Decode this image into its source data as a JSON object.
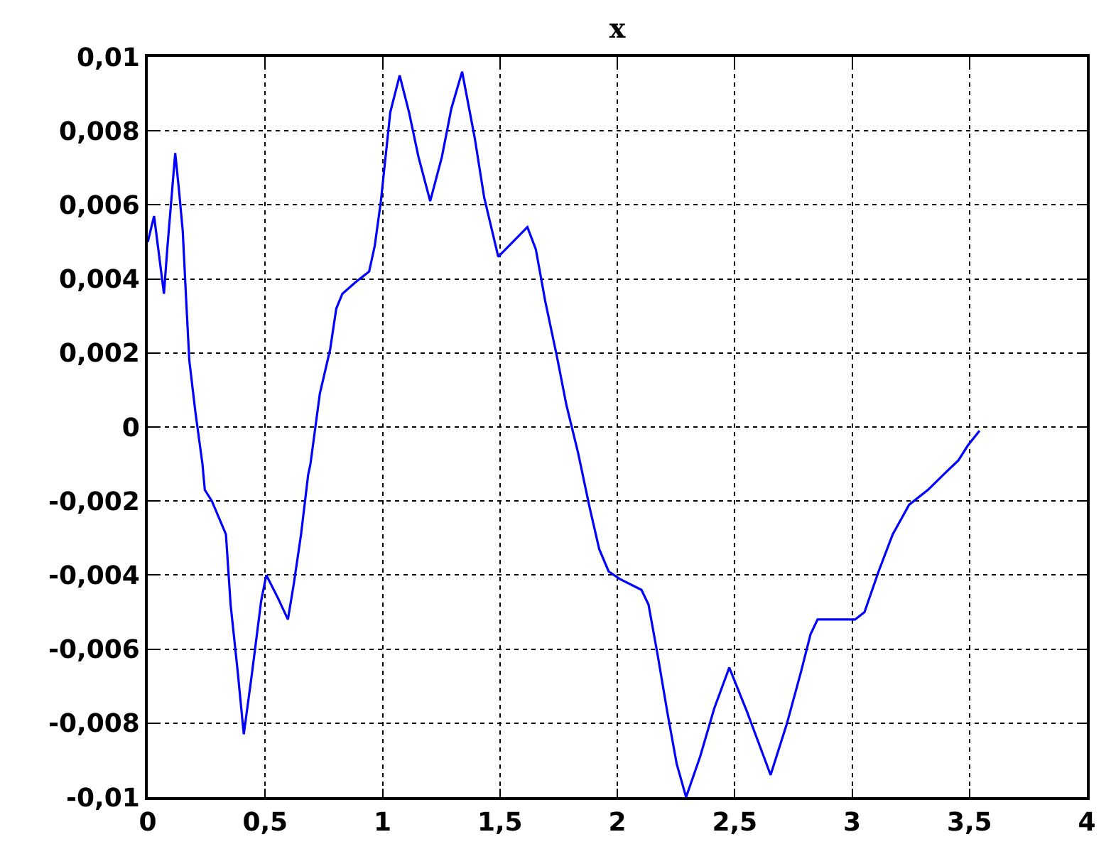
{
  "chart_data": {
    "type": "line",
    "title": "x",
    "x": [
      0,
      0.027,
      0.069,
      0.083,
      0.117,
      0.133,
      0.149,
      0.163,
      0.177,
      0.203,
      0.233,
      0.243,
      0.273,
      0.313,
      0.333,
      0.353,
      0.383,
      0.409,
      0.443,
      0.483,
      0.505,
      0.553,
      0.597,
      0.623,
      0.653,
      0.683,
      0.693,
      0.733,
      0.777,
      0.803,
      0.829,
      0.883,
      0.943,
      0.967,
      0.993,
      1.013,
      1.033,
      1.073,
      1.113,
      1.153,
      1.203,
      1.253,
      1.293,
      1.339,
      1.393,
      1.433,
      1.493,
      1.617,
      1.653,
      1.693,
      1.743,
      1.783,
      1.833,
      1.883,
      1.923,
      1.963,
      2.009,
      2.103,
      2.133,
      2.173,
      2.213,
      2.253,
      2.293,
      2.353,
      2.413,
      2.477,
      2.553,
      2.653,
      2.723,
      2.783,
      2.823,
      2.853,
      2.923,
      2.983,
      3.013,
      3.053,
      3.113,
      3.173,
      3.243,
      3.323,
      3.403,
      3.453,
      3.493,
      3.543
    ],
    "values": [
      0.005,
      0.0057,
      0.0036,
      0.0048,
      0.0074,
      0.0064,
      0.0053,
      0.0035,
      0.0018,
      0.0004,
      -0.001,
      -0.0017,
      -0.002,
      -0.0026,
      -0.0029,
      -0.0048,
      -0.0066,
      -0.0083,
      -0.0067,
      -0.0047,
      -0.004,
      -0.0046,
      -0.0052,
      -0.0042,
      -0.0029,
      -0.0013,
      -0.001,
      0.0009,
      0.0021,
      0.0032,
      0.0036,
      0.0039,
      0.0042,
      0.0049,
      0.0061,
      0.0073,
      0.0085,
      0.0095,
      0.0085,
      0.0073,
      0.0061,
      0.0073,
      0.0086,
      0.0096,
      0.0078,
      0.0062,
      0.0046,
      0.0054,
      0.0048,
      0.0034,
      0.0019,
      0.0006,
      -0.0007,
      -0.0022,
      -0.0033,
      -0.0039,
      -0.0041,
      -0.0044,
      -0.0048,
      -0.0062,
      -0.0077,
      -0.0091,
      -0.01,
      -0.0089,
      -0.0076,
      -0.0065,
      -0.0077,
      -0.0094,
      -0.008,
      -0.0066,
      -0.0056,
      -0.0052,
      -0.0052,
      -0.0052,
      -0.0052,
      -0.005,
      -0.0039,
      -0.0029,
      -0.0021,
      -0.0017,
      -0.0012,
      -0.0009,
      -0.0005,
      -0.0001
    ],
    "color": "#0000ff",
    "line_style": "solid",
    "grid": true,
    "xlim": [
      0,
      4
    ],
    "xticks": [
      0,
      {
        "value": 0.5,
        "label": "0,5"
      },
      1,
      {
        "value": 1.5,
        "label": "1,5"
      },
      2,
      {
        "value": 2.5,
        "label": "2,5"
      },
      3,
      {
        "value": 3.5,
        "label": "3,5"
      },
      4
    ],
    "ylim": [
      -0.01,
      0.01
    ],
    "yticks": [
      {
        "value": -0.01,
        "label": "-0,01"
      },
      {
        "value": -0.008,
        "label": "-0,008"
      },
      {
        "value": -0.006,
        "label": "-0,006"
      },
      {
        "value": -0.004,
        "label": "-0,004"
      },
      {
        "value": -0.002,
        "label": "-0,002"
      },
      0,
      {
        "value": 0.002,
        "label": "0,002"
      },
      {
        "value": 0.004,
        "label": "0,004"
      },
      {
        "value": 0.006,
        "label": "0,006"
      },
      {
        "value": 0.008,
        "label": "0,008"
      },
      {
        "value": 0.01,
        "label": "0,01"
      }
    ]
  }
}
